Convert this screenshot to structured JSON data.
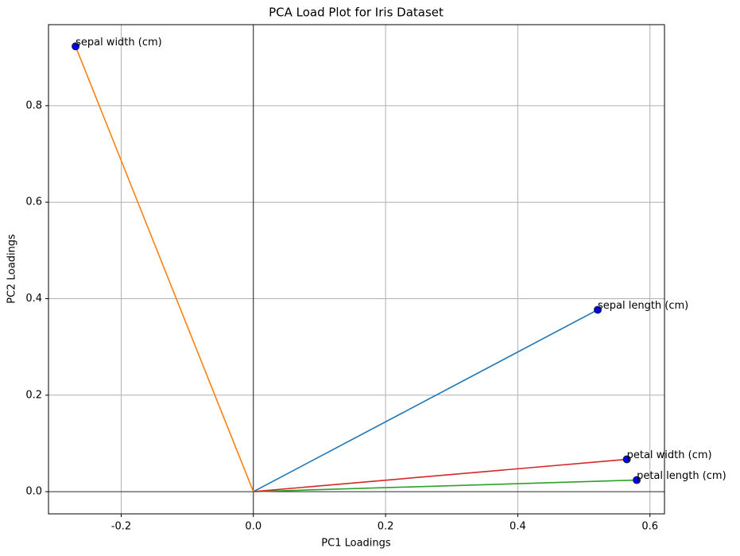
{
  "chart_data": {
    "type": "scatter",
    "title": "PCA Load Plot for Iris Dataset",
    "x_label": "PC1 Loadings",
    "y_label": "PC2 Loadings",
    "labels": [
      "sepal length (cm)",
      "sepal width (cm)",
      "petal length (cm)",
      "petal width (cm)"
    ],
    "x": [
      0.521,
      -0.269,
      0.58,
      0.565
    ],
    "values": [
      0.377,
      0.923,
      0.024,
      0.067
    ],
    "line_colors": [
      "#1f77b4",
      "#ff7f0e",
      "#2ca02c",
      "#d62728"
    ],
    "marker_color": "#0000ff",
    "label_color": "#ff0000",
    "xlim": [
      -0.31,
      0.622
    ],
    "ylim": [
      -0.046,
      0.968
    ],
    "xticks": [
      -0.2,
      {
        "value": 0,
        "label": "0.0"
      },
      0.2,
      0.4,
      0.6
    ],
    "yticks": [
      {
        "value": 0,
        "label": "0.0"
      },
      0.2,
      0.4,
      0.6,
      0.8
    ],
    "grid": true,
    "zero_lines": true
  }
}
